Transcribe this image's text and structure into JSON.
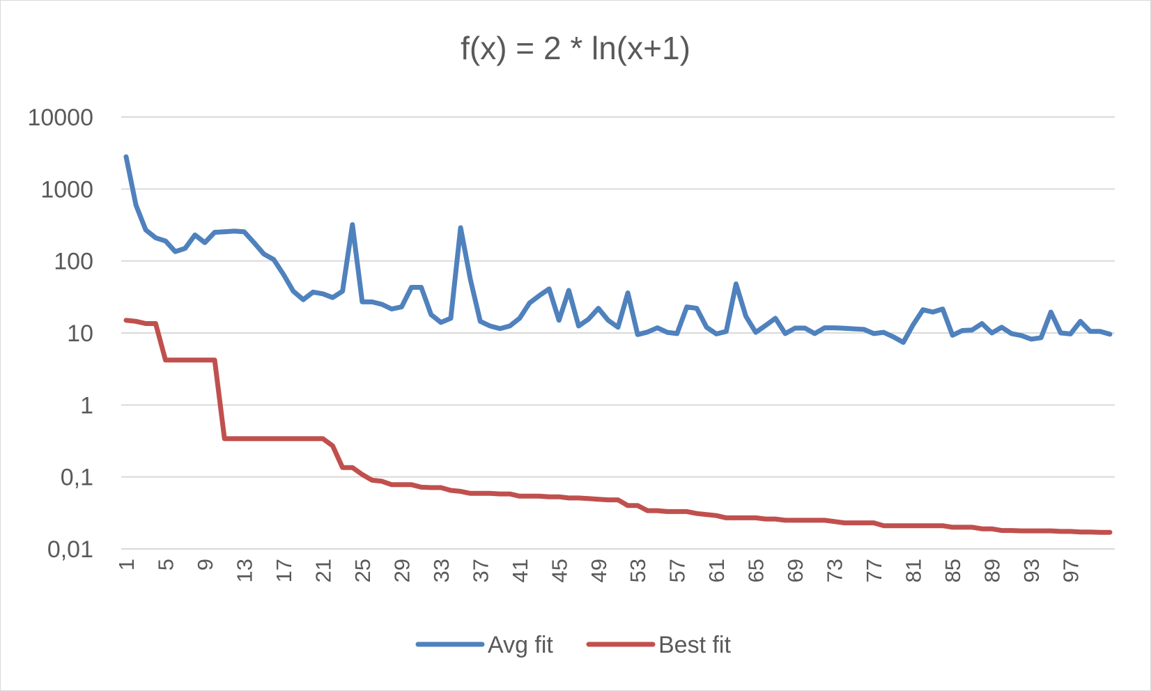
{
  "chart_data": {
    "type": "line",
    "title": "f(x) = 2 * ln(x+1)",
    "xlabel": "",
    "ylabel": "",
    "yscale": "log",
    "ylim": [
      0.01,
      10000
    ],
    "y_tick_values": [
      0.01,
      0.1,
      1,
      10,
      100,
      1000,
      10000
    ],
    "y_tick_labels": [
      "0,01",
      "0,1",
      "1",
      "10",
      "100",
      "1000",
      "10000"
    ],
    "x_tick_labels": [
      "1",
      "5",
      "9",
      "13",
      "17",
      "21",
      "25",
      "29",
      "33",
      "37",
      "41",
      "45",
      "49",
      "53",
      "57",
      "61",
      "65",
      "69",
      "73",
      "77",
      "81",
      "85",
      "89",
      "93",
      "97"
    ],
    "grid": true,
    "legend_position": "bottom",
    "series": [
      {
        "name": "Avg fit",
        "color": "#4f81bd",
        "x": [
          1,
          2,
          3,
          4,
          5,
          6,
          7,
          8,
          9,
          10,
          11,
          12,
          13,
          14,
          15,
          16,
          17,
          18,
          19,
          20,
          21,
          22,
          23,
          24,
          25,
          26,
          27,
          28,
          29,
          30,
          31,
          32,
          33,
          34,
          35,
          36,
          37,
          38,
          39,
          40,
          41,
          42,
          43,
          44,
          45,
          46,
          47,
          48,
          49,
          50,
          51,
          52,
          53,
          54,
          55,
          56,
          57,
          58,
          59,
          60,
          61,
          62,
          63,
          64,
          65,
          66,
          67,
          68,
          69,
          70,
          71,
          72,
          73,
          74,
          75,
          76,
          77,
          78,
          79,
          80,
          81,
          82,
          83,
          84,
          85,
          86,
          87,
          88,
          89,
          90,
          91,
          92,
          93,
          94,
          95,
          96,
          97,
          98,
          99,
          100,
          101
        ],
        "values": [
          2800,
          600,
          270,
          210,
          190,
          135,
          150,
          230,
          180,
          250,
          255,
          260,
          255,
          180,
          125,
          105,
          65,
          38,
          29,
          37,
          35,
          31,
          38,
          320,
          27,
          27,
          25,
          21.5,
          23,
          43,
          43,
          18,
          14,
          16,
          290,
          55,
          14.5,
          12.5,
          11.5,
          12.5,
          16,
          26,
          33,
          41,
          15,
          39,
          12.5,
          15.5,
          22,
          15,
          12,
          36,
          9.5,
          10.3,
          11.8,
          10.2,
          9.8,
          23,
          22,
          12,
          9.7,
          10.5,
          48,
          17,
          10.2,
          12.7,
          16,
          9.8,
          11.7,
          11.7,
          9.8,
          11.8,
          11.8,
          11.6,
          11.4,
          11.2,
          9.8,
          10.2,
          8.8,
          7.4,
          13,
          21,
          19.5,
          21.5,
          9.3,
          10.8,
          11,
          13.5,
          10,
          12,
          9.8,
          9.2,
          8.2,
          8.6,
          19.5,
          10,
          9.7,
          14.5,
          10.5,
          10.5,
          9.6
        ]
      },
      {
        "name": "Best fit",
        "color": "#c0504d",
        "x": [
          1,
          2,
          3,
          4,
          5,
          6,
          7,
          8,
          9,
          10,
          11,
          12,
          13,
          14,
          15,
          16,
          17,
          18,
          19,
          20,
          21,
          22,
          23,
          24,
          25,
          26,
          27,
          28,
          29,
          30,
          31,
          32,
          33,
          34,
          35,
          36,
          37,
          38,
          39,
          40,
          41,
          42,
          43,
          44,
          45,
          46,
          47,
          48,
          49,
          50,
          51,
          52,
          53,
          54,
          55,
          56,
          57,
          58,
          59,
          60,
          61,
          62,
          63,
          64,
          65,
          66,
          67,
          68,
          69,
          70,
          71,
          72,
          73,
          74,
          75,
          76,
          77,
          78,
          79,
          80,
          81,
          82,
          83,
          84,
          85,
          86,
          87,
          88,
          89,
          90,
          91,
          92,
          93,
          94,
          95,
          96,
          97,
          98,
          99,
          100,
          101
        ],
        "values": [
          15,
          14.5,
          13.5,
          13.5,
          4.2,
          4.2,
          4.2,
          4.2,
          4.2,
          4.2,
          0.34,
          0.34,
          0.34,
          0.34,
          0.34,
          0.34,
          0.34,
          0.34,
          0.34,
          0.34,
          0.34,
          0.27,
          0.135,
          0.135,
          0.108,
          0.09,
          0.087,
          0.078,
          0.078,
          0.078,
          0.072,
          0.071,
          0.071,
          0.065,
          0.063,
          0.059,
          0.059,
          0.059,
          0.058,
          0.058,
          0.054,
          0.054,
          0.054,
          0.053,
          0.053,
          0.051,
          0.051,
          0.05,
          0.049,
          0.048,
          0.048,
          0.04,
          0.04,
          0.034,
          0.034,
          0.033,
          0.033,
          0.033,
          0.031,
          0.03,
          0.029,
          0.027,
          0.027,
          0.027,
          0.027,
          0.026,
          0.026,
          0.025,
          0.025,
          0.025,
          0.025,
          0.025,
          0.024,
          0.023,
          0.023,
          0.023,
          0.023,
          0.021,
          0.021,
          0.021,
          0.021,
          0.021,
          0.021,
          0.021,
          0.02,
          0.02,
          0.02,
          0.019,
          0.019,
          0.018,
          0.018,
          0.0178,
          0.0178,
          0.0178,
          0.0178,
          0.0175,
          0.0175,
          0.0172,
          0.0172,
          0.017,
          0.017
        ]
      }
    ]
  }
}
